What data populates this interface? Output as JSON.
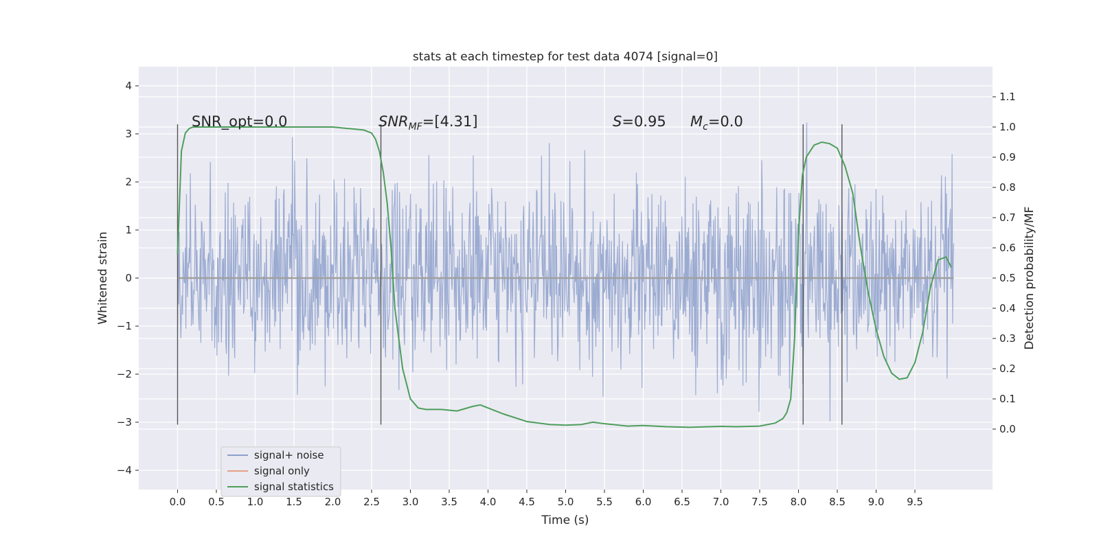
{
  "chart_data": {
    "type": "line",
    "title": "stats at each timestep for test data 4074 [signal=0]",
    "xlabel": "Time (s)",
    "ylabel": "Whitened strain",
    "ylabel_right": "Detection probability/MF",
    "xlim": [
      -0.5,
      10.5
    ],
    "ylim": [
      -4.4,
      4.4
    ],
    "ylim_right": [
      -0.2,
      1.2
    ],
    "x_ticks": [
      "0.0",
      "0.5",
      "1.0",
      "1.5",
      "2.0",
      "2.5",
      "3.0",
      "3.5",
      "4.0",
      "4.5",
      "5.0",
      "5.5",
      "6.0",
      "6.5",
      "7.0",
      "7.5",
      "8.0",
      "8.5",
      "9.0",
      "9.5"
    ],
    "y_ticks": [
      "4",
      "3",
      "2",
      "1",
      "0",
      "−1",
      "−2",
      "−3",
      "−4"
    ],
    "y_ticks_right": [
      "1.1",
      "1.0",
      "0.9",
      "0.8",
      "0.7",
      "0.6",
      "0.5",
      "0.4",
      "0.3",
      "0.2",
      "0.1",
      "0.0"
    ],
    "grid": true,
    "legend_position": "lower-left",
    "legend": [
      {
        "name": "signal+ noise",
        "color": "#8da0cb"
      },
      {
        "name": "signal only",
        "color": "#e4a183"
      },
      {
        "name": "signal statistics",
        "color": "#4d9e5b"
      }
    ],
    "annotations": {
      "snr_opt": "SNR_opt=0.0",
      "snr_mf_main": "SNR",
      "snr_mf_sub": "MF",
      "snr_mf_rest": "=[4.31]",
      "s_label": "S",
      "s_value": "=0.95",
      "mc_main": "M",
      "mc_sub": "c",
      "mc_value": "=0.0"
    },
    "vertical_lines_x": [
      0.0,
      2.62,
      8.06,
      8.56
    ],
    "vertical_line_range": [
      -3.05,
      3.2
    ],
    "noise_series": {
      "name": "signal+ noise",
      "x_range": [
        0.0,
        10.0
      ],
      "samples": 1400,
      "color": "#8da0cb"
    },
    "signal_only": {
      "name": "signal only",
      "x": [
        0.0,
        10.0
      ],
      "y": [
        0.0,
        0.0
      ]
    },
    "statistics_series": {
      "name": "signal statistics",
      "axis": "right",
      "color": "#4d9e5b",
      "x": [
        0.0,
        0.05,
        0.1,
        0.15,
        0.2,
        0.3,
        0.5,
        1.0,
        1.5,
        2.0,
        2.2,
        2.4,
        2.5,
        2.55,
        2.6,
        2.65,
        2.7,
        2.75,
        2.8,
        2.9,
        3.0,
        3.1,
        3.2,
        3.4,
        3.6,
        3.8,
        3.9,
        4.0,
        4.2,
        4.5,
        4.8,
        5.0,
        5.2,
        5.35,
        5.5,
        5.8,
        6.0,
        6.3,
        6.6,
        7.0,
        7.2,
        7.5,
        7.7,
        7.8,
        7.85,
        7.9,
        7.95,
        8.0,
        8.05,
        8.1,
        8.2,
        8.3,
        8.4,
        8.5,
        8.6,
        8.7,
        8.8,
        8.9,
        9.0,
        9.1,
        9.2,
        9.3,
        9.4,
        9.5,
        9.6,
        9.7,
        9.8,
        9.9,
        9.97
      ],
      "y": [
        0.58,
        0.92,
        0.98,
        0.995,
        1.0,
        1.0,
        1.0,
        1.0,
        1.0,
        1.0,
        0.995,
        0.99,
        0.98,
        0.96,
        0.92,
        0.85,
        0.75,
        0.6,
        0.4,
        0.2,
        0.1,
        0.07,
        0.065,
        0.065,
        0.06,
        0.075,
        0.08,
        0.07,
        0.05,
        0.025,
        0.015,
        0.013,
        0.015,
        0.023,
        0.018,
        0.01,
        0.012,
        0.008,
        0.006,
        0.009,
        0.008,
        0.01,
        0.02,
        0.035,
        0.055,
        0.1,
        0.3,
        0.65,
        0.84,
        0.9,
        0.94,
        0.95,
        0.945,
        0.93,
        0.87,
        0.78,
        0.6,
        0.45,
        0.33,
        0.24,
        0.185,
        0.165,
        0.17,
        0.22,
        0.32,
        0.47,
        0.56,
        0.57,
        0.535
      ]
    }
  }
}
